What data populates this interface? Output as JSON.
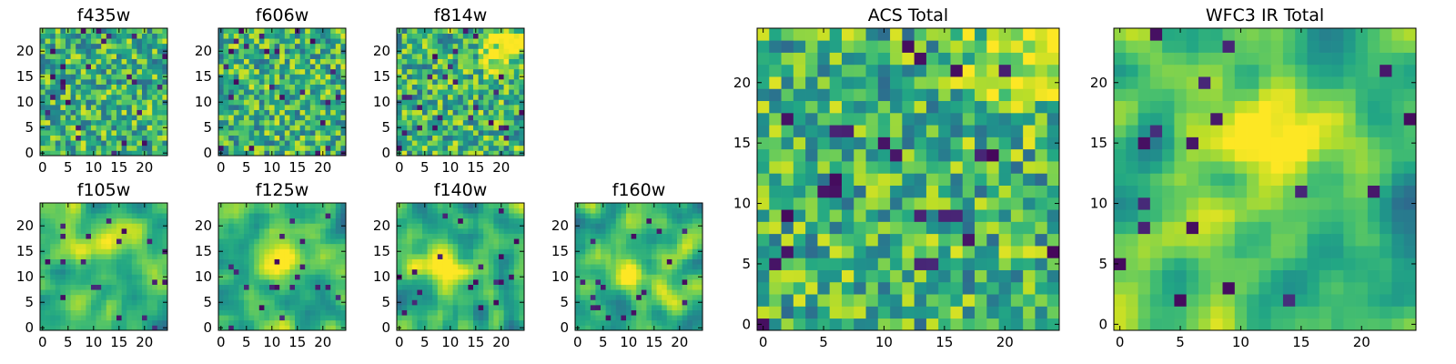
{
  "chart_data": [
    {
      "type": "heatmap",
      "title": "f435w",
      "x_ticks": [
        "0",
        "5",
        "10",
        "15",
        "20"
      ],
      "y_ticks": [
        "0",
        "5",
        "10",
        "15",
        "20"
      ],
      "xlim": [
        -0.5,
        24.5
      ],
      "ylim": [
        -0.5,
        24.5
      ],
      "grid_size": [
        25,
        25
      ],
      "colormap": "viridis",
      "texture": "fine-noise",
      "seed": 11,
      "hot_spot": null
    },
    {
      "type": "heatmap",
      "title": "f606w",
      "x_ticks": [
        "0",
        "5",
        "10",
        "15",
        "20"
      ],
      "y_ticks": [
        "0",
        "5",
        "10",
        "15",
        "20"
      ],
      "xlim": [
        -0.5,
        24.5
      ],
      "ylim": [
        -0.5,
        24.5
      ],
      "grid_size": [
        25,
        25
      ],
      "colormap": "viridis",
      "texture": "fine-noise",
      "seed": 23,
      "hot_spot": null
    },
    {
      "type": "heatmap",
      "title": "f814w",
      "x_ticks": [
        "0",
        "5",
        "10",
        "15",
        "20"
      ],
      "y_ticks": [
        "0",
        "5",
        "10",
        "15",
        "20"
      ],
      "xlim": [
        -0.5,
        24.5
      ],
      "ylim": [
        -0.5,
        24.5
      ],
      "grid_size": [
        25,
        25
      ],
      "colormap": "viridis",
      "texture": "fine-noise",
      "seed": 37,
      "hot_spot": [
        20,
        21
      ]
    },
    {
      "type": "heatmap",
      "title": "f105w",
      "x_ticks": [
        "0",
        "5",
        "10",
        "15",
        "20"
      ],
      "y_ticks": [
        "0",
        "5",
        "10",
        "15",
        "20"
      ],
      "xlim": [
        -0.5,
        24.5
      ],
      "ylim": [
        -0.5,
        24.5
      ],
      "grid_size": [
        25,
        25
      ],
      "colormap": "viridis",
      "texture": "smooth-noise",
      "seed": 41,
      "hot_spot": [
        14,
        18
      ]
    },
    {
      "type": "heatmap",
      "title": "f125w",
      "x_ticks": [
        "0",
        "5",
        "10",
        "15",
        "20"
      ],
      "y_ticks": [
        "0",
        "5",
        "10",
        "15",
        "20"
      ],
      "xlim": [
        -0.5,
        24.5
      ],
      "ylim": [
        -0.5,
        24.5
      ],
      "grid_size": [
        25,
        25
      ],
      "colormap": "viridis",
      "texture": "smooth-noise",
      "seed": 53,
      "hot_spot": [
        12,
        14
      ]
    },
    {
      "type": "heatmap",
      "title": "f140w",
      "x_ticks": [
        "0",
        "5",
        "10",
        "15",
        "20"
      ],
      "y_ticks": [
        "0",
        "5",
        "10",
        "15",
        "20"
      ],
      "xlim": [
        -0.5,
        24.5
      ],
      "ylim": [
        -0.5,
        24.5
      ],
      "grid_size": [
        25,
        25
      ],
      "colormap": "viridis",
      "texture": "smooth-noise",
      "seed": 67,
      "hot_spot": [
        8,
        12
      ]
    },
    {
      "type": "heatmap",
      "title": "f160w",
      "x_ticks": [
        "0",
        "5",
        "10",
        "15",
        "20"
      ],
      "y_ticks": [
        "0",
        "5",
        "10",
        "15",
        "20"
      ],
      "xlim": [
        -0.5,
        24.5
      ],
      "ylim": [
        -0.5,
        24.5
      ],
      "grid_size": [
        25,
        25
      ],
      "colormap": "viridis",
      "texture": "smooth-noise",
      "seed": 79,
      "hot_spot": [
        10,
        10
      ]
    },
    {
      "type": "heatmap",
      "title": "ACS Total",
      "x_ticks": [
        "0",
        "5",
        "10",
        "15",
        "20"
      ],
      "y_ticks": [
        "0",
        "5",
        "10",
        "15",
        "20"
      ],
      "xlim": [
        -0.5,
        24.5
      ],
      "ylim": [
        -0.5,
        24.5
      ],
      "grid_size": [
        25,
        25
      ],
      "colormap": "viridis",
      "texture": "fine-noise",
      "seed": 97,
      "hot_spot": [
        21,
        22
      ]
    },
    {
      "type": "heatmap",
      "title": "WFC3 IR Total",
      "x_ticks": [
        "0",
        "5",
        "10",
        "15",
        "20"
      ],
      "y_ticks": [
        "0",
        "5",
        "10",
        "15",
        "20"
      ],
      "xlim": [
        -0.5,
        24.5
      ],
      "ylim": [
        -0.5,
        24.5
      ],
      "grid_size": [
        25,
        25
      ],
      "colormap": "viridis",
      "texture": "smooth-noise",
      "seed": 113,
      "hot_spot": [
        12,
        14
      ]
    }
  ]
}
